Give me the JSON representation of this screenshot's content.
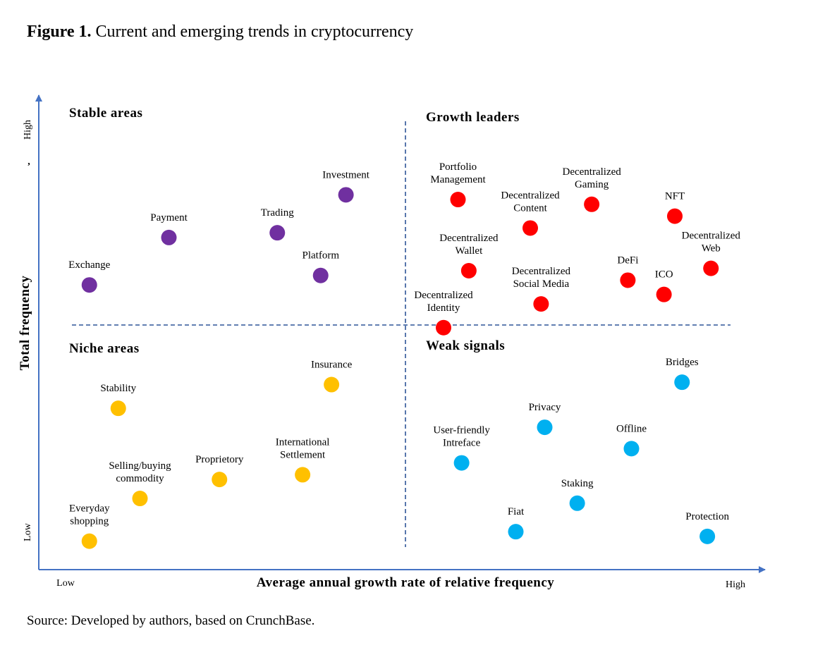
{
  "figure": {
    "label": "Figure 1.",
    "caption": "Current and emerging trends in cryptocurrency",
    "source": "Source: Developed by authors, based on CrunchBase."
  },
  "chart_data": {
    "type": "scatter",
    "xlabel": "Average annual growth rate of relative frequency",
    "ylabel": "Total frequency",
    "x_low_label": "Low",
    "x_high_label": "High",
    "y_low_label": "Low",
    "y_high_label": "High",
    "y_stray_mark": ",",
    "xlim": [
      0,
      100
    ],
    "ylim": [
      0,
      100
    ],
    "grid": false,
    "quadrant_dividers": {
      "x": 50,
      "y": 50
    },
    "quadrants": [
      {
        "name": "Stable areas"
      },
      {
        "name": "Growth leaders"
      },
      {
        "name": "Niche areas"
      },
      {
        "name": "Weak signals"
      }
    ],
    "colors": {
      "Stable areas": "#7030a0",
      "Growth leaders": "#ff0000",
      "Niche areas": "#ffc000",
      "Weak signals": "#00b0f0",
      "axis": "#4472c4",
      "divider": "#2f5597"
    },
    "series": [
      {
        "group": "Stable areas",
        "points": [
          {
            "label": [
              "Exchange"
            ],
            "x": 7,
            "y": 60
          },
          {
            "label": [
              "Payment"
            ],
            "x": 18,
            "y": 70
          },
          {
            "label": [
              "Trading"
            ],
            "x": 33,
            "y": 71
          },
          {
            "label": [
              "Investment"
            ],
            "x": 42.5,
            "y": 79
          },
          {
            "label": [
              "Platform"
            ],
            "x": 39,
            "y": 62
          }
        ]
      },
      {
        "group": "Growth leaders",
        "points": [
          {
            "label": [
              "Portfolio",
              "Management"
            ],
            "x": 58,
            "y": 78
          },
          {
            "label": [
              "Decentralized",
              "Content"
            ],
            "x": 68,
            "y": 72
          },
          {
            "label": [
              "Decentralized",
              "Gaming"
            ],
            "x": 76.5,
            "y": 77
          },
          {
            "label": [
              "NFT"
            ],
            "x": 88,
            "y": 74.5
          },
          {
            "label": [
              "Decentralized",
              "Wallet"
            ],
            "x": 59.5,
            "y": 63
          },
          {
            "label": [
              "Decentralized",
              "Web"
            ],
            "x": 93,
            "y": 63.5
          },
          {
            "label": [
              "DeFi"
            ],
            "x": 81.5,
            "y": 61
          },
          {
            "label": [
              "ICO"
            ],
            "x": 86.5,
            "y": 58
          },
          {
            "label": [
              "Decentralized",
              "Social Media"
            ],
            "x": 69.5,
            "y": 56
          },
          {
            "label": [
              "Decentralized",
              "Identity"
            ],
            "x": 56,
            "y": 51
          }
        ]
      },
      {
        "group": "Niche areas",
        "points": [
          {
            "label": [
              "Stability"
            ],
            "x": 11,
            "y": 34
          },
          {
            "label": [
              "Insurance"
            ],
            "x": 40.5,
            "y": 39
          },
          {
            "label": [
              "Selling/buying",
              "commodity"
            ],
            "x": 14,
            "y": 15
          },
          {
            "label": [
              "Proprietory"
            ],
            "x": 25,
            "y": 19
          },
          {
            "label": [
              "International",
              "Settlement"
            ],
            "x": 36.5,
            "y": 20
          },
          {
            "label": [
              "Everyday",
              "shopping"
            ],
            "x": 7,
            "y": 6
          }
        ]
      },
      {
        "group": "Weak signals",
        "points": [
          {
            "label": [
              "Bridges"
            ],
            "x": 89,
            "y": 39.5
          },
          {
            "label": [
              "Privacy"
            ],
            "x": 70,
            "y": 30
          },
          {
            "label": [
              "Offline"
            ],
            "x": 82,
            "y": 25.5
          },
          {
            "label": [
              "User-friendly",
              "Intreface"
            ],
            "x": 58.5,
            "y": 22.5
          },
          {
            "label": [
              "Staking"
            ],
            "x": 74.5,
            "y": 14
          },
          {
            "label": [
              "Fiat"
            ],
            "x": 66,
            "y": 8
          },
          {
            "label": [
              "Protection"
            ],
            "x": 92.5,
            "y": 7
          }
        ]
      }
    ]
  }
}
